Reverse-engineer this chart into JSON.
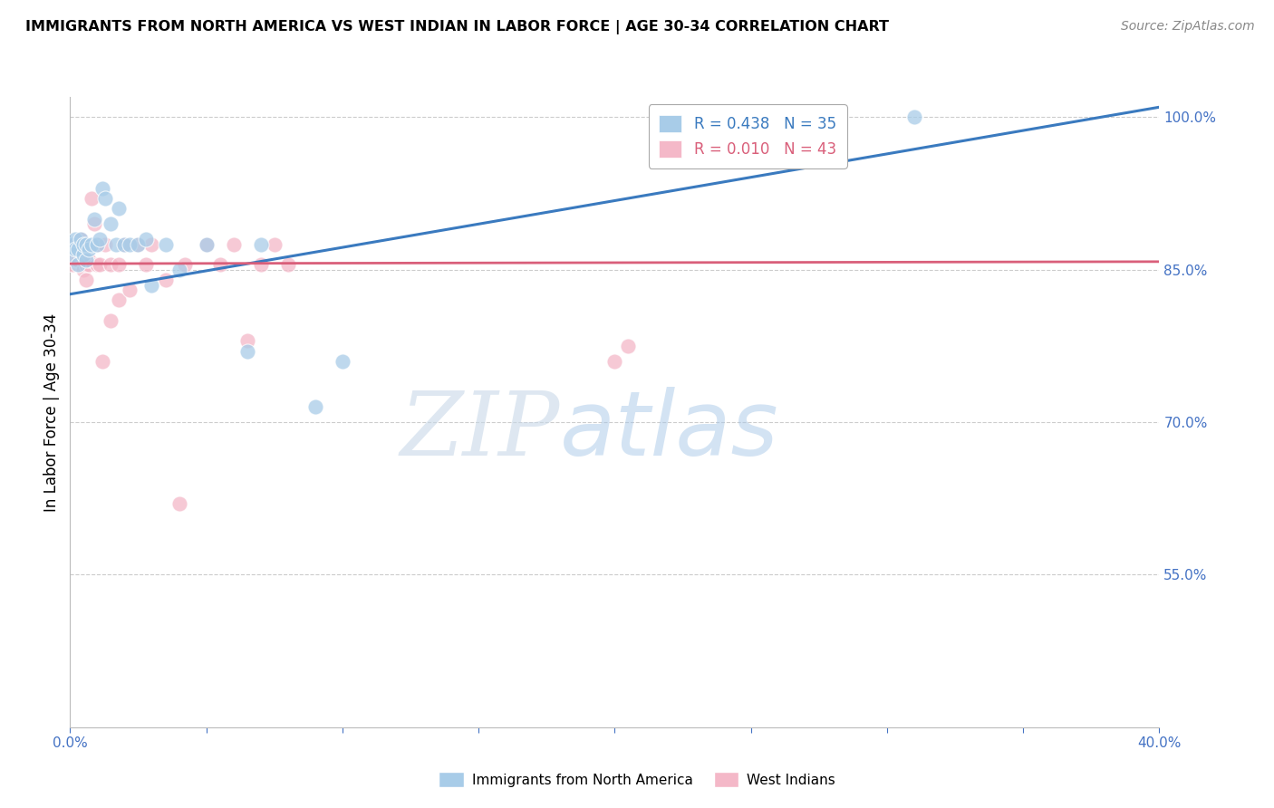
{
  "title": "IMMIGRANTS FROM NORTH AMERICA VS WEST INDIAN IN LABOR FORCE | AGE 30-34 CORRELATION CHART",
  "source": "Source: ZipAtlas.com",
  "ylabel": "In Labor Force | Age 30-34",
  "xlim": [
    0.0,
    0.4
  ],
  "ylim": [
    0.4,
    1.02
  ],
  "xticks": [
    0.0,
    0.05,
    0.1,
    0.15,
    0.2,
    0.25,
    0.3,
    0.35,
    0.4
  ],
  "right_yticks": [
    1.0,
    0.85,
    0.7,
    0.55
  ],
  "right_yticklabels": [
    "100.0%",
    "85.0%",
    "70.0%",
    "55.0%"
  ],
  "blue_color": "#a8cce8",
  "pink_color": "#f4b8c8",
  "blue_line_color": "#3a7abf",
  "pink_line_color": "#d95f7a",
  "blue_R": 0.438,
  "blue_N": 35,
  "pink_R": 0.01,
  "pink_N": 43,
  "legend_label_blue": "Immigrants from North America",
  "legend_label_pink": "West Indians",
  "watermark_zip": "ZIP",
  "watermark_atlas": "atlas",
  "blue_scatter_x": [
    0.001,
    0.001,
    0.002,
    0.002,
    0.003,
    0.003,
    0.004,
    0.005,
    0.005,
    0.006,
    0.006,
    0.007,
    0.008,
    0.009,
    0.01,
    0.011,
    0.012,
    0.013,
    0.015,
    0.017,
    0.018,
    0.02,
    0.022,
    0.025,
    0.028,
    0.03,
    0.035,
    0.04,
    0.05,
    0.065,
    0.07,
    0.09,
    0.1,
    0.28,
    0.31
  ],
  "blue_scatter_y": [
    0.875,
    0.865,
    0.88,
    0.87,
    0.855,
    0.87,
    0.88,
    0.865,
    0.875,
    0.875,
    0.86,
    0.87,
    0.875,
    0.9,
    0.875,
    0.88,
    0.93,
    0.92,
    0.895,
    0.875,
    0.91,
    0.875,
    0.875,
    0.875,
    0.88,
    0.835,
    0.875,
    0.85,
    0.875,
    0.77,
    0.875,
    0.715,
    0.76,
    1.0,
    1.0
  ],
  "pink_scatter_x": [
    0.001,
    0.001,
    0.002,
    0.002,
    0.003,
    0.003,
    0.004,
    0.004,
    0.005,
    0.005,
    0.005,
    0.006,
    0.006,
    0.007,
    0.007,
    0.008,
    0.009,
    0.01,
    0.01,
    0.011,
    0.012,
    0.013,
    0.015,
    0.015,
    0.018,
    0.018,
    0.02,
    0.022,
    0.025,
    0.028,
    0.03,
    0.035,
    0.04,
    0.042,
    0.05,
    0.055,
    0.06,
    0.065,
    0.07,
    0.075,
    0.08,
    0.2,
    0.205
  ],
  "pink_scatter_y": [
    0.875,
    0.855,
    0.86,
    0.875,
    0.86,
    0.875,
    0.88,
    0.875,
    0.85,
    0.86,
    0.875,
    0.855,
    0.84,
    0.855,
    0.86,
    0.92,
    0.895,
    0.855,
    0.875,
    0.855,
    0.76,
    0.875,
    0.8,
    0.855,
    0.82,
    0.855,
    0.875,
    0.83,
    0.875,
    0.855,
    0.875,
    0.84,
    0.62,
    0.855,
    0.875,
    0.855,
    0.875,
    0.78,
    0.855,
    0.875,
    0.855,
    0.76,
    0.775
  ],
  "blue_line_x": [
    0.0,
    0.4
  ],
  "blue_line_y": [
    0.826,
    1.01
  ],
  "pink_line_x": [
    0.0,
    0.4
  ],
  "pink_line_y": [
    0.856,
    0.858
  ],
  "grid_color": "#cccccc",
  "axis_color": "#4472c4",
  "background_color": "#ffffff"
}
